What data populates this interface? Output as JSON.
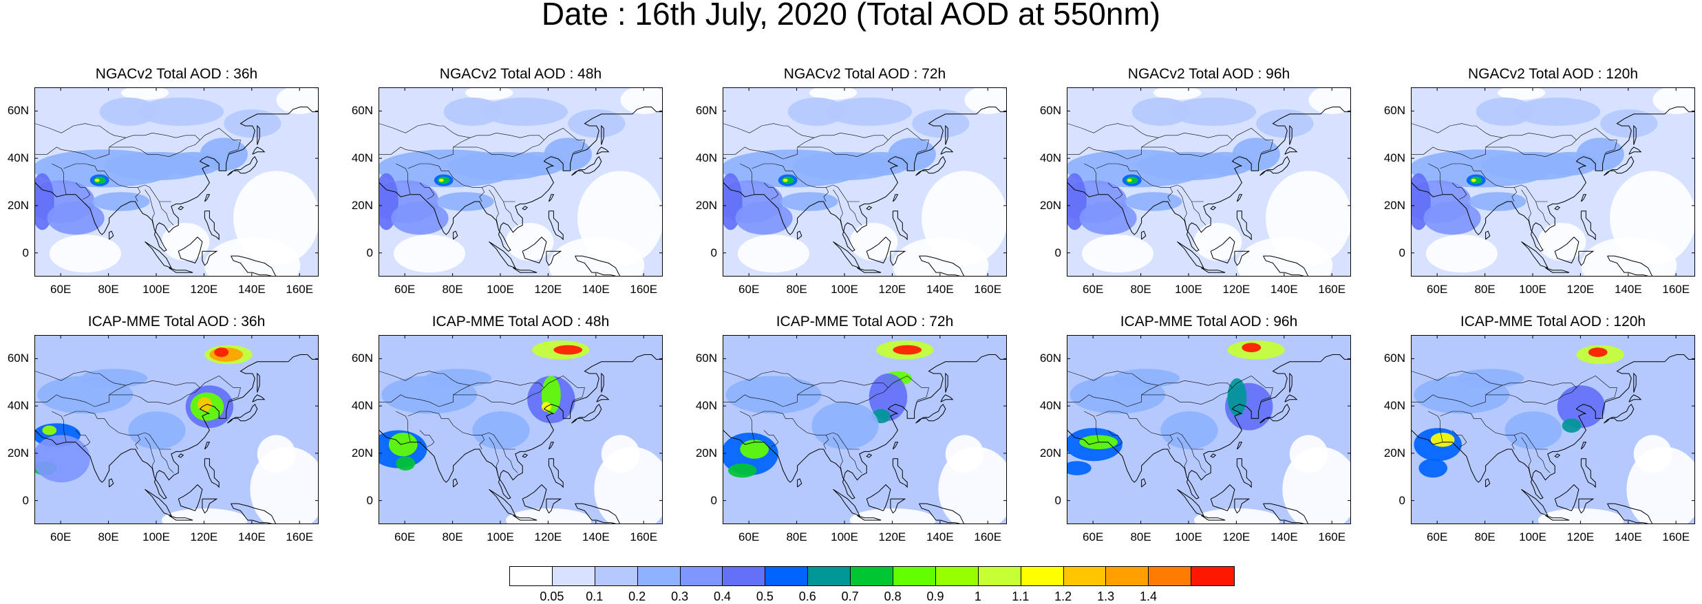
{
  "title": "Date : 16th July, 2020 (Total AOD at 550nm)",
  "rows": [
    {
      "model": "NGACv2",
      "panels": [
        {
          "title": "NGACv2 Total AOD : 36h"
        },
        {
          "title": "NGACv2 Total AOD : 48h"
        },
        {
          "title": "NGACv2 Total AOD : 72h"
        },
        {
          "title": "NGACv2 Total AOD : 96h"
        },
        {
          "title": "NGACv2 Total AOD : 120h"
        }
      ]
    },
    {
      "model": "ICAP-MME",
      "panels": [
        {
          "title": "ICAP-MME Total AOD : 36h"
        },
        {
          "title": "ICAP-MME Total AOD : 48h"
        },
        {
          "title": "ICAP-MME Total AOD : 72h"
        },
        {
          "title": "ICAP-MME Total AOD : 96h"
        },
        {
          "title": "ICAP-MME Total AOD : 120h"
        }
      ]
    }
  ],
  "lon_ticks": [
    "60E",
    "80E",
    "100E",
    "120E",
    "140E",
    "160E"
  ],
  "lat_ticks": [
    "60N",
    "40N",
    "20N",
    "0"
  ],
  "lon_tick_values": [
    60,
    80,
    100,
    120,
    140,
    160
  ],
  "lat_tick_values": [
    60,
    40,
    20,
    0
  ],
  "lon_range": [
    49,
    168
  ],
  "lat_range": [
    -10,
    70
  ],
  "colorbar": {
    "labels": [
      "0.05",
      "0.1",
      "0.2",
      "0.3",
      "0.4",
      "0.5",
      "0.6",
      "0.7",
      "0.8",
      "0.9",
      "1",
      "1.1",
      "1.2",
      "1.3",
      "1.4"
    ],
    "colors": [
      "#ffffff",
      "#d6e2ff",
      "#b5c9ff",
      "#8eb2ff",
      "#7f96ff",
      "#6370f8",
      "#0063ff",
      "#009696",
      "#00c633",
      "#63ff00",
      "#96ff00",
      "#c6ff33",
      "#ffff00",
      "#ffc600",
      "#ffa000",
      "#ff7c00",
      "#ff1900"
    ]
  }
}
